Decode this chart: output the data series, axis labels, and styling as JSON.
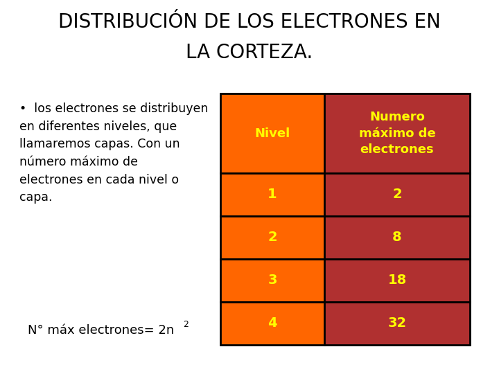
{
  "title_line1": "DISTRIBUCIÓN DE LOS ELECTRONES EN",
  "title_line2": "LA CORTEZA.",
  "title_fontsize": 20,
  "title_color": "#000000",
  "bullet_text": "los electrones se distribuyen\nen diferentes niveles, que\nllamaremos capas. Con un\nnúmero máximo de\nelectrones en cada nivel o\ncapa.",
  "bullet_fontsize": 12.5,
  "formula_text": "N° máx electrones= 2n",
  "formula_superscript": "2",
  "formula_fontsize": 13,
  "table_header_col1": "Nivel",
  "table_header_col2": "Numero\nmáximo de\nelectrones",
  "table_rows": [
    [
      "1",
      "2"
    ],
    [
      "2",
      "8"
    ],
    [
      "3",
      "18"
    ],
    [
      "4",
      "32"
    ]
  ],
  "col1_bg": "#FF6600",
  "col2_bg": "#B03030",
  "header_text_color": "#FFFF00",
  "row_text_color": "#FFFF00",
  "table_border_color": "#000000",
  "background_color": "#FFFFFF",
  "title_weight": "normal",
  "header_fontsize": 13,
  "row_fontsize": 14
}
